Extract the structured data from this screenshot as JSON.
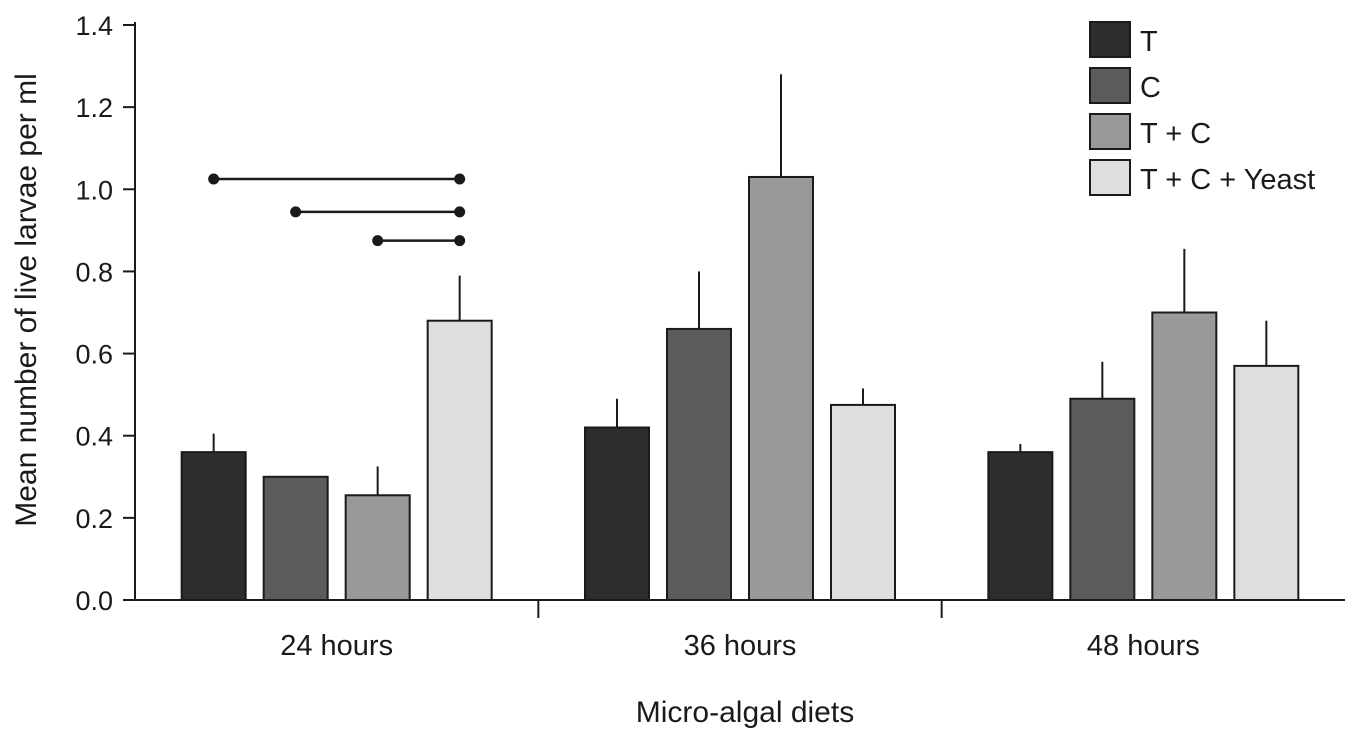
{
  "chart_data": {
    "type": "bar",
    "title": "",
    "xlabel": "Micro-algal diets",
    "ylabel": "Mean number of live larvae per ml",
    "ylim": [
      0,
      1.4
    ],
    "yticks": [
      "0.0",
      "0.2",
      "0.4",
      "0.6",
      "0.8",
      "1.0",
      "1.2",
      "1.4"
    ],
    "categories": [
      "24 hours",
      "36 hours",
      "48 hours"
    ],
    "legend_position": "top-right",
    "grid": false,
    "series": [
      {
        "name": "T",
        "color": "#2d2d2d",
        "values": [
          0.36,
          0.42,
          0.36
        ],
        "errors": [
          0.045,
          0.07,
          0.02
        ]
      },
      {
        "name": "C",
        "color": "#5b5b5b",
        "values": [
          0.3,
          0.66,
          0.49
        ],
        "errors": [
          0.0,
          0.14,
          0.09
        ]
      },
      {
        "name": "T + C",
        "color": "#999999",
        "values": [
          0.255,
          1.03,
          0.7
        ],
        "errors": [
          0.07,
          0.25,
          0.155
        ]
      },
      {
        "name": "T + C + Yeast",
        "color": "#dedede",
        "values": [
          0.68,
          0.475,
          0.57
        ],
        "errors": [
          0.11,
          0.04,
          0.11
        ]
      }
    ],
    "significance": [
      {
        "group": "24 hours",
        "from": "T",
        "to": "T + C + Yeast",
        "y": 1.025
      },
      {
        "group": "24 hours",
        "from": "C",
        "to": "T + C + Yeast",
        "y": 0.945
      },
      {
        "group": "24 hours",
        "from": "T + C",
        "to": "T + C + Yeast",
        "y": 0.875
      }
    ]
  }
}
